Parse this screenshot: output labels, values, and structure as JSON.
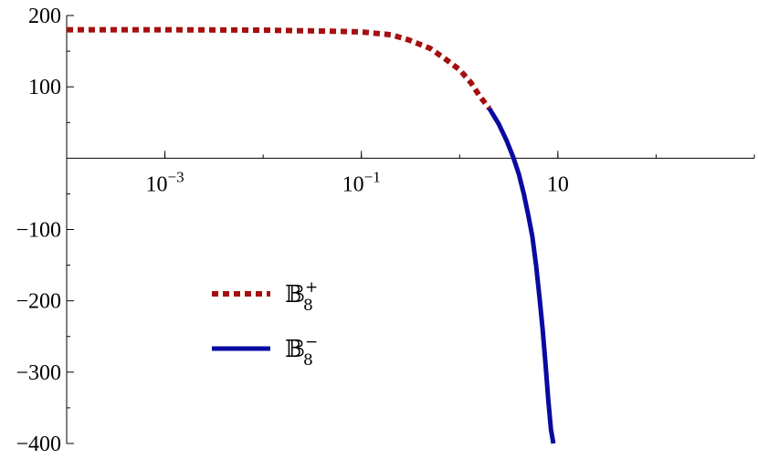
{
  "chart_data": {
    "type": "line",
    "title": "",
    "xlabel": "",
    "ylabel": "",
    "x_scale": "log",
    "xlim": [
      0.0001,
      1000
    ],
    "ylim": [
      -400,
      200
    ],
    "grid": false,
    "legend_position": "bottom-left",
    "x_ticks": [
      {
        "value": 0.001,
        "base": "10",
        "exp": "−3"
      },
      {
        "value": 0.1,
        "base": "10",
        "exp": "−1"
      },
      {
        "value": 10,
        "base": "10",
        "exp": ""
      }
    ],
    "y_ticks": [
      {
        "value": 200,
        "label": "200"
      },
      {
        "value": 100,
        "label": "100"
      },
      {
        "value": -100,
        "label": "−100"
      },
      {
        "value": -200,
        "label": "−200"
      },
      {
        "value": -300,
        "label": "−300"
      },
      {
        "value": -400,
        "label": "−400"
      }
    ],
    "series": [
      {
        "name": "𝔹",
        "sub": "8",
        "sup": "+",
        "color": "#a50f0f",
        "style": "dotted",
        "points": [
          [
            0.0001,
            180
          ],
          [
            0.001,
            180
          ],
          [
            0.01,
            179.5
          ],
          [
            0.05,
            178
          ],
          [
            0.1,
            177
          ],
          [
            0.2,
            173
          ],
          [
            0.3,
            166
          ],
          [
            0.5,
            154
          ],
          [
            0.7,
            140
          ],
          [
            1.0,
            124
          ],
          [
            1.3,
            106
          ],
          [
            1.6,
            87
          ],
          [
            2.0,
            70
          ]
        ]
      },
      {
        "name": "𝔹",
        "sub": "8",
        "sup": "−",
        "color": "#0a0aa0",
        "style": "solid",
        "points": [
          [
            2.0,
            70
          ],
          [
            2.5,
            48
          ],
          [
            3.0,
            25
          ],
          [
            3.5,
            2
          ],
          [
            4.0,
            -22
          ],
          [
            4.5,
            -50
          ],
          [
            5.0,
            -80
          ],
          [
            5.5,
            -110
          ],
          [
            6.0,
            -150
          ],
          [
            6.5,
            -195
          ],
          [
            7.0,
            -240
          ],
          [
            7.5,
            -290
          ],
          [
            8.0,
            -340
          ],
          [
            8.5,
            -380
          ],
          [
            9.0,
            -400
          ]
        ]
      }
    ]
  }
}
